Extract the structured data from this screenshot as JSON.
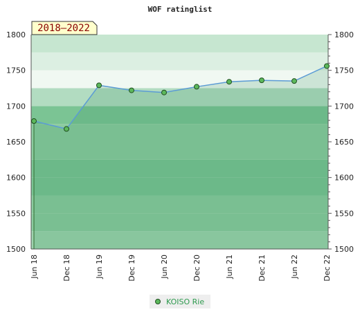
{
  "chart_data": {
    "type": "area",
    "title": "WOF ratinglist",
    "period_label": "2018–2022",
    "categories": [
      "Jun 18",
      "Dec 18",
      "Jun 19",
      "Dec 19",
      "Jun 20",
      "Dec 20",
      "Jun 21",
      "Dec 21",
      "Jun 22",
      "Dec 22"
    ],
    "series": [
      {
        "name": "KOISO Rie",
        "values": [
          1679,
          1668,
          1729,
          1722,
          1719,
          1727,
          1734,
          1736,
          1735,
          1756
        ]
      }
    ],
    "ylim": [
      1500,
      1800
    ],
    "yticks": [
      1500,
      1550,
      1600,
      1650,
      1700,
      1750,
      1800
    ],
    "xlabel": "",
    "ylabel": "",
    "grid": true,
    "legend_position": "bottom-center",
    "colors": {
      "line": "#5b9bd5",
      "marker_fill": "#5cb85c",
      "marker_stroke": "#1f4e1f",
      "badge_fill": "#ffffcc",
      "badge_text": "#8b0000",
      "legend_text": "#2e9a4e"
    }
  }
}
